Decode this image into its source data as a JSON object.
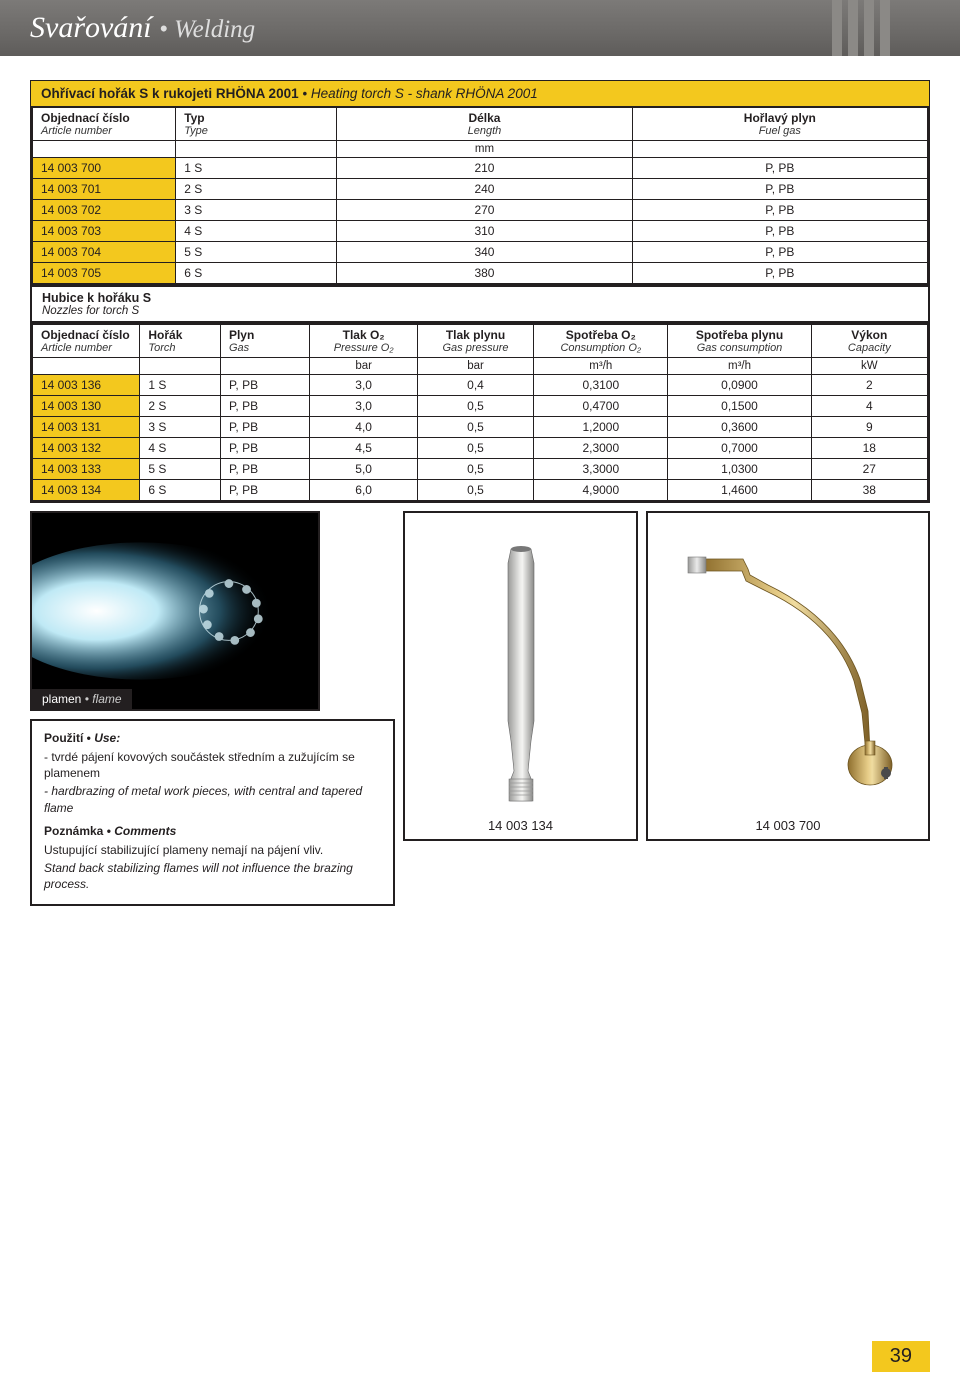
{
  "header": {
    "title_cs": "Svařování",
    "title_en": "Welding"
  },
  "section_title": {
    "cs": "Ohřívací hořák S k rukojeti RHÖNA 2001",
    "en": "Heating torch S - shank RHÖNA 2001"
  },
  "table1": {
    "columns": [
      {
        "cs": "Objednací číslo",
        "en": "Article number"
      },
      {
        "cs": "Typ",
        "en": "Type"
      },
      {
        "cs": "Délka",
        "en": "Length"
      },
      {
        "cs": "Hořlavý plyn",
        "en": "Fuel gas"
      }
    ],
    "units": [
      "",
      "",
      "mm",
      ""
    ],
    "rows": [
      [
        "14 003 700",
        "1 S",
        "210",
        "P, PB"
      ],
      [
        "14 003 701",
        "2 S",
        "240",
        "P, PB"
      ],
      [
        "14 003 702",
        "3 S",
        "270",
        "P, PB"
      ],
      [
        "14 003 703",
        "4 S",
        "310",
        "P, PB"
      ],
      [
        "14 003 704",
        "5 S",
        "340",
        "P, PB"
      ],
      [
        "14 003 705",
        "6 S",
        "380",
        "P, PB"
      ]
    ],
    "col_widths": [
      "16%",
      "18%",
      "33%",
      "33%"
    ],
    "yellow_col": 0,
    "center_cols": [
      2,
      3
    ]
  },
  "subsection": {
    "cs": "Hubice k hořáku S",
    "en": "Nozzles for torch S"
  },
  "table2": {
    "columns": [
      {
        "cs": "Objednací číslo",
        "en": "Article number"
      },
      {
        "cs": "Hořák",
        "en": "Torch"
      },
      {
        "cs": "Plyn",
        "en": "Gas"
      },
      {
        "cs": "Tlak O₂",
        "en": "Pressure O₂"
      },
      {
        "cs": "Tlak plynu",
        "en": "Gas pressure"
      },
      {
        "cs": "Spotřeba O₂",
        "en": "Consumption O₂"
      },
      {
        "cs": "Spotřeba plynu",
        "en": "Gas consumption"
      },
      {
        "cs": "Výkon",
        "en": "Capacity"
      }
    ],
    "units": [
      "",
      "",
      "",
      "bar",
      "bar",
      "m³/h",
      "m³/h",
      "kW"
    ],
    "rows": [
      [
        "14 003 136",
        "1 S",
        "P, PB",
        "3,0",
        "0,4",
        "0,3100",
        "0,0900",
        "2"
      ],
      [
        "14 003 130",
        "2 S",
        "P, PB",
        "3,0",
        "0,5",
        "0,4700",
        "0,1500",
        "4"
      ],
      [
        "14 003 131",
        "3 S",
        "P, PB",
        "4,0",
        "0,5",
        "1,2000",
        "0,3600",
        "9"
      ],
      [
        "14 003 132",
        "4 S",
        "P, PB",
        "4,5",
        "0,5",
        "2,3000",
        "0,7000",
        "18"
      ],
      [
        "14 003 133",
        "5 S",
        "P, PB",
        "5,0",
        "0,5",
        "3,3000",
        "1,0300",
        "27"
      ],
      [
        "14 003 134",
        "6 S",
        "P, PB",
        "6,0",
        "0,5",
        "4,9000",
        "1,4600",
        "38"
      ]
    ],
    "col_widths": [
      "12%",
      "9%",
      "10%",
      "12%",
      "13%",
      "15%",
      "16%",
      "13%"
    ],
    "yellow_col": 0,
    "center_cols": [
      3,
      4,
      5,
      6,
      7
    ]
  },
  "flame_caption": {
    "cs": "plamen",
    "en": "flame"
  },
  "use_block": {
    "heading": {
      "cs": "Použití",
      "en": "Use:"
    },
    "line1_cs": "- tvrdé pájení kovových součástek středním a zužujícím se plamenem",
    "line1_en": "- hardbrazing of metal work pieces, with central and tapered flame",
    "note_heading": {
      "cs": "Poznámka",
      "en": "Comments"
    },
    "line2_cs": "Ustupující stabilizující plameny nemají na pájení vliv.",
    "line2_en": "Stand back stabilizing flames will not influence the brazing process."
  },
  "image_labels": {
    "nozzle": "14 003 134",
    "torch": "14 003 700"
  },
  "page_number": "39",
  "colors": {
    "yellow": "#f3c81e",
    "header_grad_top": "#7c7a78",
    "header_grad_bot": "#5e5c5a",
    "border": "#231f20",
    "brass": "#c9a553"
  }
}
